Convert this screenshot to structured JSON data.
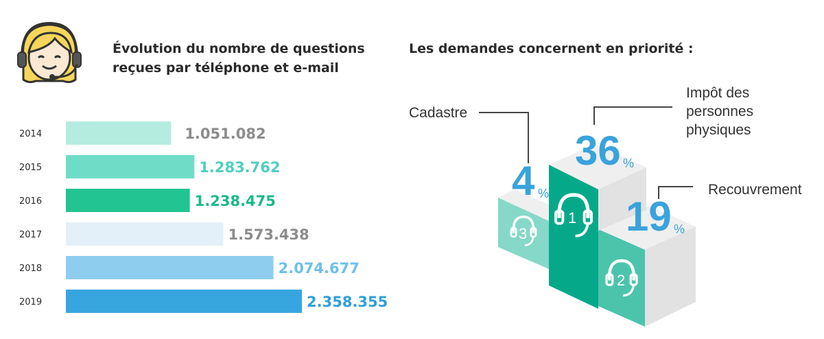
{
  "left_title_line1": "Évolution du nombre de questions",
  "left_title_line2": "reçues par téléphone et e-mail",
  "right_title": "Les demandes concernent en priorité :",
  "chart_data": [
    {
      "type": "bar",
      "orientation": "horizontal",
      "title": "Évolution du nombre de questions reçues par téléphone et e-mail",
      "categories": [
        "2014",
        "2015",
        "2016",
        "2017",
        "2018",
        "2019"
      ],
      "values": [
        1051082,
        1283762,
        1238475,
        1573438,
        2074677,
        2358355
      ],
      "value_labels": [
        "1.051.082",
        "1.283.762",
        "1.238.475",
        "1.573.438",
        "2.074.677",
        "2.358.355"
      ],
      "bar_colors": [
        "#b5ece0",
        "#6fdcc8",
        "#22c492",
        "#e3f0f9",
        "#8fcdee",
        "#37a6df"
      ],
      "label_colors": [
        "#8c8c8c",
        "#4fcfc0",
        "#1bb98a",
        "#8c8c8c",
        "#6dc0ea",
        "#2f9fd9"
      ]
    },
    {
      "type": "podium",
      "title": "Les demandes concernent en priorité :",
      "items": [
        {
          "rank": "1",
          "label_lines": [
            "Impôt des",
            "personnes",
            "physiques"
          ],
          "value": 36,
          "percent_sign": "%"
        },
        {
          "rank": "2",
          "label_lines": [
            "Recouvrement"
          ],
          "value": 19,
          "percent_sign": "%"
        },
        {
          "rank": "3",
          "label_lines": [
            "Cadastre"
          ],
          "value": 4,
          "percent_sign": "%"
        }
      ],
      "colors": {
        "rank1": "#05a98a",
        "rank2": "#4cc4ac",
        "rank3": "#86d8c9",
        "top": "#efefef",
        "side": "#e2e2e2",
        "percent": "#3aa3dc"
      }
    }
  ],
  "icons": {
    "avatar": "call-center-agent-icon",
    "headset": "headset-icon"
  }
}
